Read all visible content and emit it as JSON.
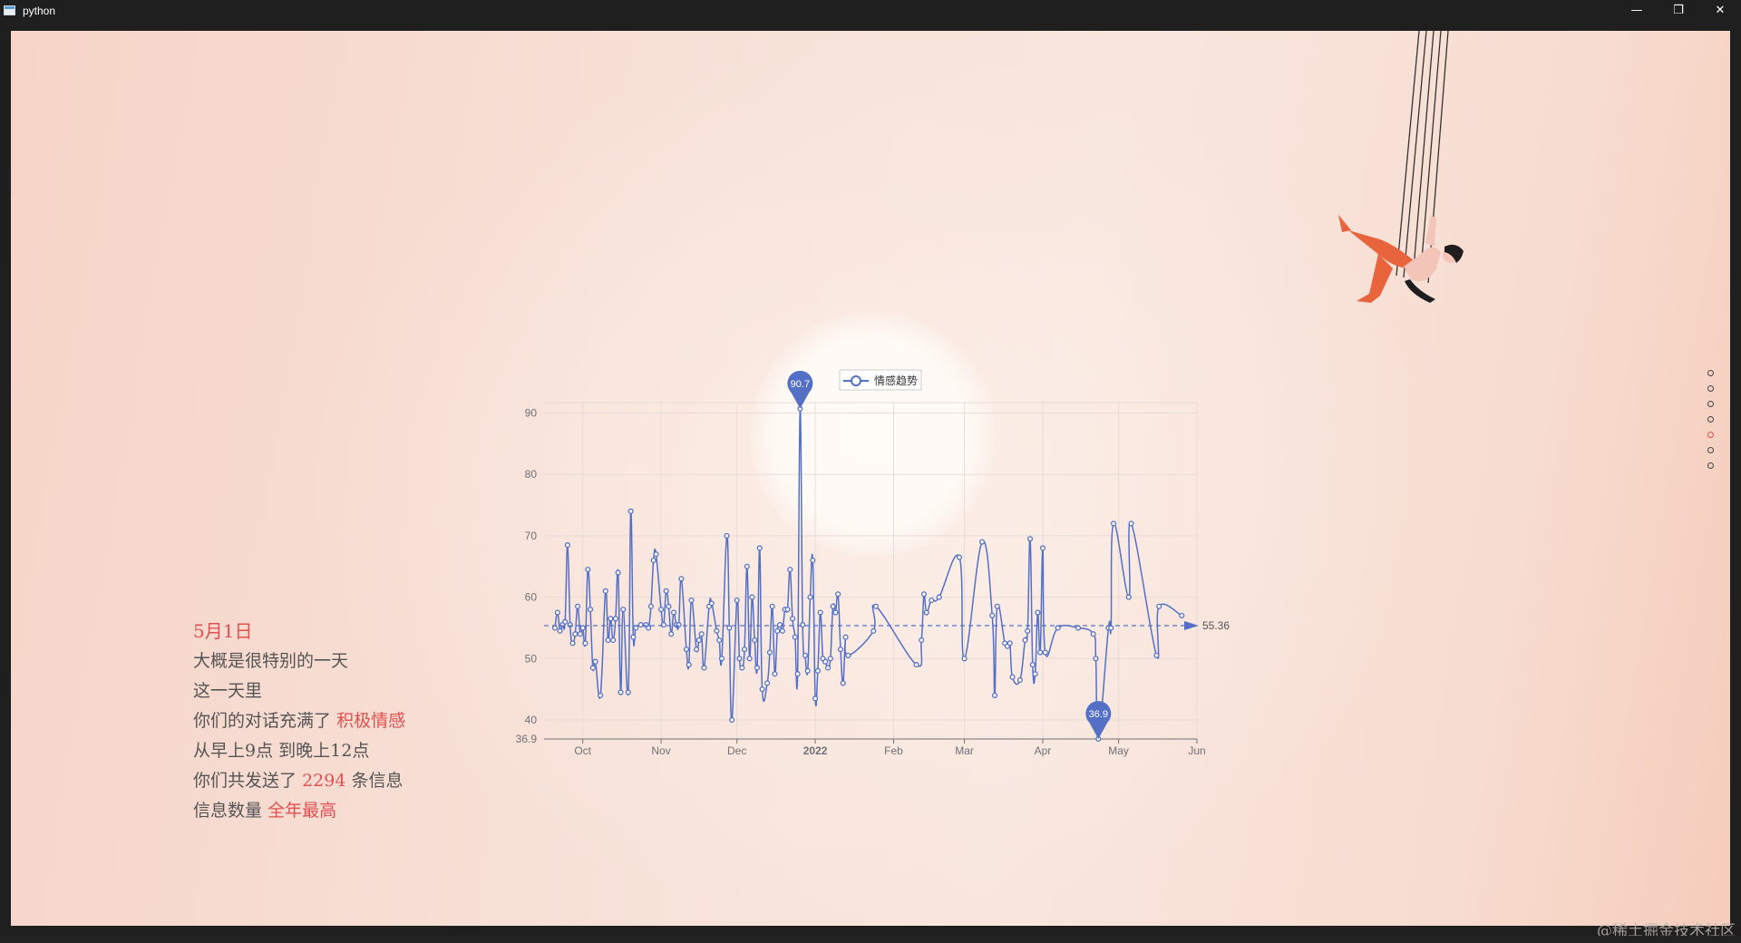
{
  "window": {
    "title": "python",
    "minimize_glyph": "—",
    "maximize_glyph": "❐",
    "close_glyph": "✕"
  },
  "story": {
    "date": "5月1日",
    "line1": "大概是很特别的一天",
    "line2": "这一天里",
    "line3_prefix": "你们的对话充满了",
    "line3_highlight": "积极情感",
    "line4_a": "从早上",
    "line4_b": "9",
    "line4_c": "点 到晚上",
    "line4_d": "12",
    "line4_e": "点",
    "line5_prefix": "你们共发送了",
    "line5_count": "2294",
    "line5_suffix": "条信息",
    "line6_prefix": "信息数量",
    "line6_highlight": "全年最高"
  },
  "nav": {
    "dot_count": 7,
    "active_index": 4
  },
  "watermark": "@稀土掘金技术社区",
  "colors": {
    "accent": "#e05050",
    "series": "#5470c6",
    "text": "#555555"
  },
  "chart_data": {
    "type": "line",
    "legend": "情感趋势",
    "legend_position": "top-center",
    "series": [
      {
        "name": "情感趋势",
        "smooth": true,
        "points": [
          [
            "2021-09-20",
            55.0
          ],
          [
            "2021-09-21",
            57.5
          ],
          [
            "2021-09-22",
            54.5
          ],
          [
            "2021-09-23",
            55.5
          ],
          [
            "2021-09-24",
            56.0
          ],
          [
            "2021-09-25",
            68.5
          ],
          [
            "2021-09-26",
            55.5
          ],
          [
            "2021-09-27",
            52.5
          ],
          [
            "2021-09-28",
            54.0
          ],
          [
            "2021-09-29",
            58.5
          ],
          [
            "2021-09-30",
            54.0
          ],
          [
            "2021-10-01",
            55.0
          ],
          [
            "2021-10-02",
            52.5
          ],
          [
            "2021-10-03",
            64.5
          ],
          [
            "2021-10-04",
            58.0
          ],
          [
            "2021-10-05",
            48.5
          ],
          [
            "2021-10-06",
            49.5
          ],
          [
            "2021-10-08",
            44.0
          ],
          [
            "2021-10-10",
            61.0
          ],
          [
            "2021-10-11",
            53.0
          ],
          [
            "2021-10-12",
            56.5
          ],
          [
            "2021-10-13",
            53.0
          ],
          [
            "2021-10-14",
            56.5
          ],
          [
            "2021-10-15",
            64.0
          ],
          [
            "2021-10-16",
            44.5
          ],
          [
            "2021-10-17",
            58.0
          ],
          [
            "2021-10-19",
            44.5
          ],
          [
            "2021-10-20",
            74.0
          ],
          [
            "2021-10-21",
            53.5
          ],
          [
            "2021-10-22",
            55.0
          ],
          [
            "2021-10-24",
            55.5
          ],
          [
            "2021-10-26",
            55.5
          ],
          [
            "2021-10-27",
            55.0
          ],
          [
            "2021-10-28",
            58.5
          ],
          [
            "2021-10-29",
            66.0
          ],
          [
            "2021-10-30",
            67.0
          ],
          [
            "2021-11-01",
            58.0
          ],
          [
            "2021-11-02",
            55.5
          ],
          [
            "2021-11-03",
            61.0
          ],
          [
            "2021-11-04",
            58.5
          ],
          [
            "2021-11-05",
            54.0
          ],
          [
            "2021-11-06",
            57.5
          ],
          [
            "2021-11-07",
            55.5
          ],
          [
            "2021-11-08",
            55.5
          ],
          [
            "2021-11-09",
            63.0
          ],
          [
            "2021-11-11",
            51.5
          ],
          [
            "2021-11-12",
            49.0
          ],
          [
            "2021-11-13",
            59.5
          ],
          [
            "2021-11-15",
            51.5
          ],
          [
            "2021-11-16",
            53.0
          ],
          [
            "2021-11-17",
            54.0
          ],
          [
            "2021-11-18",
            48.5
          ],
          [
            "2021-11-20",
            58.5
          ],
          [
            "2021-11-21",
            59.0
          ],
          [
            "2021-11-23",
            54.5
          ],
          [
            "2021-11-24",
            53.0
          ],
          [
            "2021-11-25",
            50.0
          ],
          [
            "2021-11-27",
            70.0
          ],
          [
            "2021-11-28",
            55.0
          ],
          [
            "2021-11-29",
            40.0
          ],
          [
            "2021-12-01",
            59.5
          ],
          [
            "2021-12-02",
            50.0
          ],
          [
            "2021-12-03",
            48.5
          ],
          [
            "2021-12-04",
            51.5
          ],
          [
            "2021-12-05",
            65.0
          ],
          [
            "2021-12-06",
            50.0
          ],
          [
            "2021-12-07",
            60.0
          ],
          [
            "2021-12-08",
            53.0
          ],
          [
            "2021-12-09",
            48.5
          ],
          [
            "2021-12-10",
            68.0
          ],
          [
            "2021-12-11",
            45.0
          ],
          [
            "2021-12-13",
            46.0
          ],
          [
            "2021-12-14",
            51.0
          ],
          [
            "2021-12-15",
            58.5
          ],
          [
            "2021-12-16",
            47.5
          ],
          [
            "2021-12-17",
            54.5
          ],
          [
            "2021-12-18",
            55.5
          ],
          [
            "2021-12-19",
            54.5
          ],
          [
            "2021-12-20",
            58.0
          ],
          [
            "2021-12-21",
            58.0
          ],
          [
            "2021-12-22",
            64.5
          ],
          [
            "2021-12-23",
            56.5
          ],
          [
            "2021-12-24",
            53.5
          ],
          [
            "2021-12-25",
            47.5
          ],
          [
            "2021-12-26",
            90.7
          ],
          [
            "2021-12-27",
            55.5
          ],
          [
            "2021-12-28",
            50.5
          ],
          [
            "2021-12-29",
            48.0
          ],
          [
            "2021-12-30",
            60.0
          ],
          [
            "2021-12-31",
            66.0
          ],
          [
            "2022-01-01",
            43.5
          ],
          [
            "2022-01-02",
            48.0
          ],
          [
            "2022-01-03",
            57.5
          ],
          [
            "2022-01-04",
            50.0
          ],
          [
            "2022-01-05",
            49.5
          ],
          [
            "2022-01-06",
            48.5
          ],
          [
            "2022-01-07",
            50.0
          ],
          [
            "2022-01-08",
            58.5
          ],
          [
            "2022-01-09",
            57.5
          ],
          [
            "2022-01-10",
            60.5
          ],
          [
            "2022-01-11",
            51.5
          ],
          [
            "2022-01-12",
            46.0
          ],
          [
            "2022-01-13",
            53.5
          ],
          [
            "2022-01-14",
            50.5
          ],
          [
            "2022-01-24",
            54.5
          ],
          [
            "2022-01-25",
            58.5
          ],
          [
            "2022-02-10",
            49.0
          ],
          [
            "2022-02-12",
            53.0
          ],
          [
            "2022-02-13",
            60.5
          ],
          [
            "2022-02-14",
            57.5
          ],
          [
            "2022-02-16",
            59.5
          ],
          [
            "2022-02-19",
            60.0
          ],
          [
            "2022-02-27",
            66.5
          ],
          [
            "2022-03-01",
            50.0
          ],
          [
            "2022-03-08",
            69.0
          ],
          [
            "2022-03-12",
            57.0
          ],
          [
            "2022-03-13",
            44.0
          ],
          [
            "2022-03-14",
            58.5
          ],
          [
            "2022-03-17",
            52.5
          ],
          [
            "2022-03-18",
            52.0
          ],
          [
            "2022-03-19",
            52.5
          ],
          [
            "2022-03-20",
            47.0
          ],
          [
            "2022-03-23",
            46.5
          ],
          [
            "2022-03-25",
            53.0
          ],
          [
            "2022-03-26",
            54.5
          ],
          [
            "2022-03-27",
            69.5
          ],
          [
            "2022-03-28",
            49.0
          ],
          [
            "2022-03-29",
            47.5
          ],
          [
            "2022-03-30",
            57.5
          ],
          [
            "2022-03-31",
            51.0
          ],
          [
            "2022-04-01",
            68.0
          ],
          [
            "2022-04-02",
            51.0
          ],
          [
            "2022-04-07",
            55.0
          ],
          [
            "2022-04-15",
            55.0
          ],
          [
            "2022-04-21",
            54.0
          ],
          [
            "2022-04-22",
            50.0
          ],
          [
            "2022-04-23",
            36.9
          ],
          [
            "2022-04-27",
            55.0
          ],
          [
            "2022-04-28",
            55.0
          ],
          [
            "2022-04-29",
            72.0
          ],
          [
            "2022-05-05",
            60.0
          ],
          [
            "2022-05-06",
            72.0
          ],
          [
            "2022-05-16",
            50.5
          ],
          [
            "2022-05-17",
            58.5
          ],
          [
            "2022-05-26",
            57.0
          ]
        ]
      }
    ],
    "markpoints": [
      {
        "label": "90.7",
        "type": "max",
        "date": "2021-12-26",
        "value": 90.7
      },
      {
        "label": "36.9",
        "type": "min",
        "date": "2022-04-23",
        "value": 36.9
      }
    ],
    "markline": {
      "label": "55.36",
      "type": "average",
      "value": 55.36
    },
    "x_range": [
      "2021-09-20",
      "2022-05-26"
    ],
    "x_ticks": [
      {
        "label": "Oct",
        "date": "2021-10-01",
        "bold": false
      },
      {
        "label": "Nov",
        "date": "2021-11-01",
        "bold": false
      },
      {
        "label": "Dec",
        "date": "2021-12-01",
        "bold": false
      },
      {
        "label": "2022",
        "date": "2022-01-01",
        "bold": true
      },
      {
        "label": "Feb",
        "date": "2022-02-01",
        "bold": false
      },
      {
        "label": "Mar",
        "date": "2022-03-01",
        "bold": false
      },
      {
        "label": "Apr",
        "date": "2022-04-01",
        "bold": false
      },
      {
        "label": "May",
        "date": "2022-05-01",
        "bold": false
      },
      {
        "label": "Jun",
        "date": "2022-06-01",
        "bold": false
      }
    ],
    "ylim": [
      36.9,
      91.7
    ],
    "y_ticks": [
      {
        "label": "36.9",
        "value": 36.9
      },
      {
        "label": "40",
        "value": 40
      },
      {
        "label": "50",
        "value": 50
      },
      {
        "label": "60",
        "value": 60
      },
      {
        "label": "70",
        "value": 70
      },
      {
        "label": "80",
        "value": 80
      },
      {
        "label": "90",
        "value": 90
      }
    ],
    "grid": true
  }
}
